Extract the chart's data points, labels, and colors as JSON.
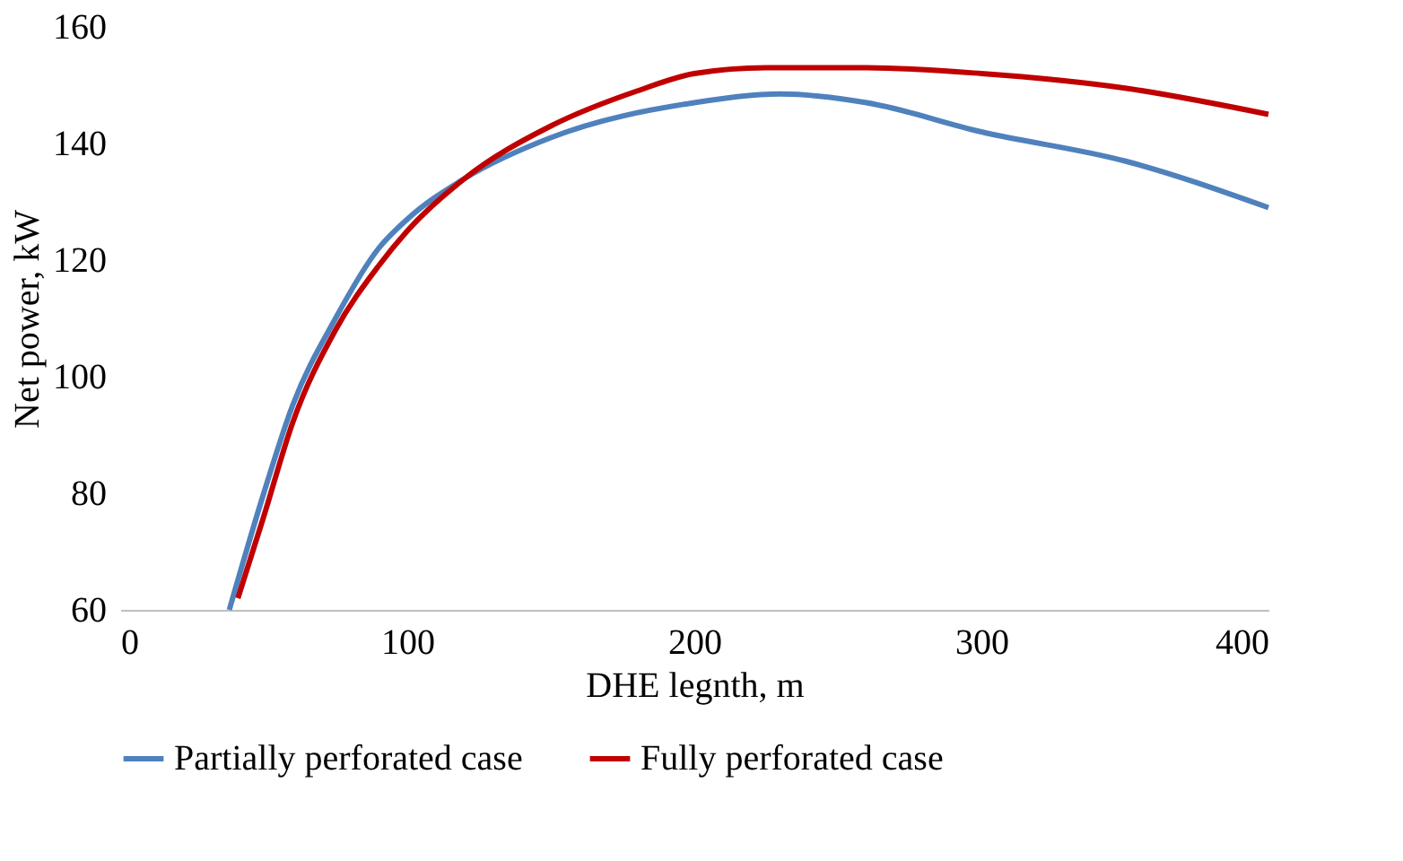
{
  "chart_data": {
    "type": "line",
    "xlabel": "DHE legnth, m",
    "ylabel": "Net power, kW",
    "xlim": [
      0,
      400
    ],
    "xticks": [
      0,
      100,
      200,
      300,
      400
    ],
    "ylim": [
      60,
      160
    ],
    "yticks": [
      60,
      80,
      100,
      120,
      140,
      160
    ],
    "grid": false,
    "legend": "bottom",
    "marker": "none",
    "line_style": "solid",
    "series": [
      {
        "name": "Partially perforated case",
        "color": "#4f81bd",
        "x": [
          38,
          50,
          60,
          75,
          90,
          100,
          120,
          150,
          200,
          230,
          260,
          300,
          350,
          400
        ],
        "values": [
          60,
          80,
          95,
          110,
          122,
          127,
          134,
          141,
          147,
          148.5,
          147,
          142,
          137,
          129
        ]
      },
      {
        "name": "Fully perforated case",
        "color": "#c00000",
        "x": [
          41,
          50,
          60,
          75,
          90,
          100,
          120,
          150,
          180,
          200,
          225,
          260,
          300,
          350,
          400
        ],
        "values": [
          62,
          76,
          92,
          108,
          119,
          125,
          134,
          143,
          149,
          152,
          153,
          153,
          152,
          149.5,
          145
        ]
      }
    ]
  }
}
